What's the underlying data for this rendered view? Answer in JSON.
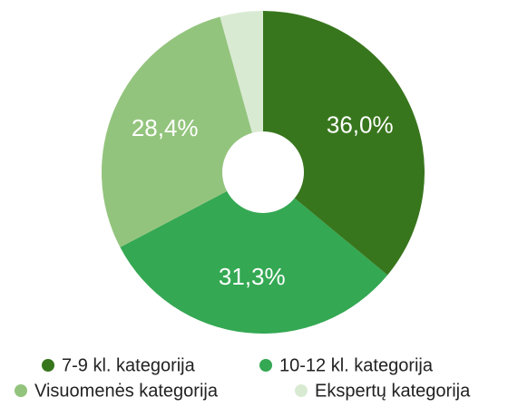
{
  "chart_data": {
    "type": "donut",
    "categories": [
      "7-9 kl. kategorija",
      "10-12 kl. kategorija",
      "Visuomenės kategorija",
      "Ekspertų kategorija"
    ],
    "values": [
      36.0,
      31.3,
      28.4,
      4.3
    ],
    "value_labels": [
      "36,0%",
      "31,3%",
      "28,4%",
      null
    ],
    "colors": [
      "#38761d",
      "#34a853",
      "#93c47d",
      "#d9ead3"
    ]
  }
}
